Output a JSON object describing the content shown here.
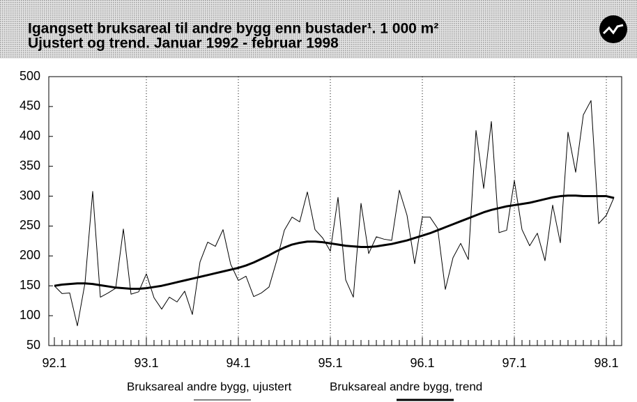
{
  "chart_data": {
    "type": "line",
    "title": "Igangsett bruksareal til andre bygg enn bustader¹. 1 000 m²",
    "subtitle": "Ujustert og trend. Januar 1992 - februar 1998",
    "categories": [
      "92.1",
      null,
      null,
      null,
      null,
      null,
      null,
      null,
      null,
      null,
      null,
      null,
      "93.1",
      null,
      null,
      null,
      null,
      null,
      null,
      null,
      null,
      null,
      null,
      null,
      "94.1",
      null,
      null,
      null,
      null,
      null,
      null,
      null,
      null,
      null,
      null,
      null,
      "95.1",
      null,
      null,
      null,
      null,
      null,
      null,
      null,
      null,
      null,
      null,
      null,
      "96.1",
      null,
      null,
      null,
      null,
      null,
      null,
      null,
      null,
      null,
      null,
      null,
      "97.1",
      null,
      null,
      null,
      null,
      null,
      null,
      null,
      null,
      null,
      null,
      null,
      "98.1",
      null
    ],
    "series": [
      {
        "name": "Bruksareal andre bygg, ujustert",
        "color": "#000000",
        "width": 1,
        "values": [
          150,
          137,
          138,
          83,
          155,
          308,
          131,
          138,
          146,
          245,
          136,
          140,
          170,
          130,
          111,
          131,
          123,
          141,
          102,
          190,
          223,
          216,
          244,
          186,
          159,
          166,
          132,
          138,
          148,
          192,
          243,
          265,
          257,
          307,
          244,
          230,
          208,
          298,
          160,
          131,
          288,
          204,
          232,
          228,
          226,
          310,
          268,
          187,
          265,
          265,
          246,
          144,
          197,
          221,
          194,
          410,
          313,
          425,
          239,
          243,
          326,
          244,
          217,
          238,
          192,
          285,
          222,
          407,
          340,
          436,
          460,
          254,
          268,
          298
        ]
      },
      {
        "name": "Bruksareal andre bygg, trend",
        "color": "#000000",
        "width": 3,
        "values": [
          150,
          152,
          153,
          154,
          154,
          153,
          151,
          149,
          147,
          146,
          145,
          145,
          146,
          148,
          150,
          153,
          156,
          159,
          162,
          165,
          168,
          171,
          174,
          177,
          180,
          184,
          189,
          195,
          201,
          208,
          214,
          219,
          222,
          224,
          224,
          223,
          221,
          219,
          217,
          216,
          215,
          215,
          216,
          218,
          220,
          223,
          226,
          230,
          234,
          238,
          243,
          248,
          253,
          258,
          263,
          268,
          273,
          277,
          280,
          283,
          285,
          287,
          289,
          292,
          295,
          298,
          300,
          301,
          301,
          300,
          300,
          300,
          300,
          297
        ]
      }
    ],
    "ylim": [
      50,
      500
    ],
    "yticks": [
      50,
      100,
      150,
      200,
      250,
      300,
      350,
      400,
      450,
      500
    ],
    "grid": true,
    "legend": "bottom"
  }
}
